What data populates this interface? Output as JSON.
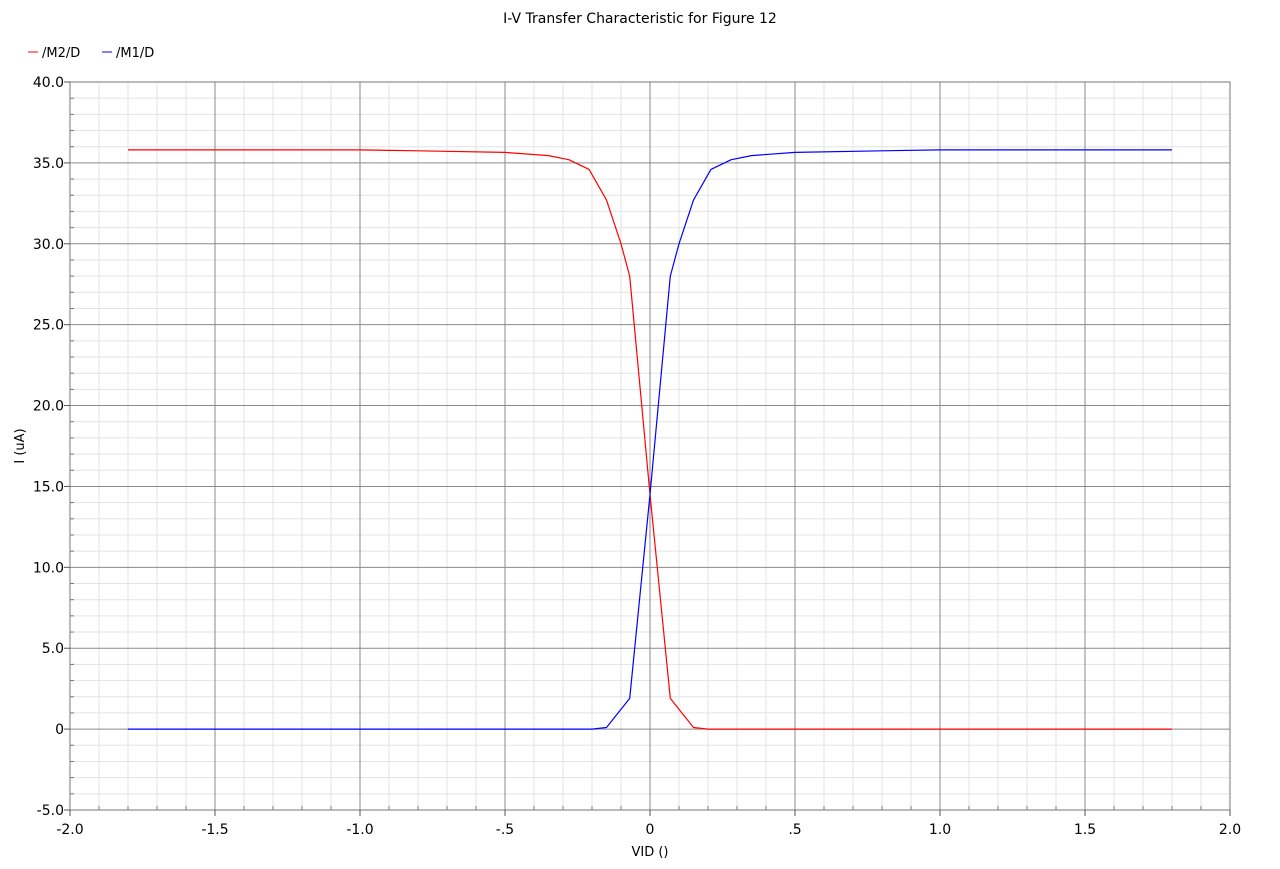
{
  "chart_data": {
    "type": "line",
    "title": "I-V Transfer Characteristic for Figure 12",
    "xlabel": "VID ()",
    "ylabel": "I (uA)",
    "xlim": [
      -2.0,
      2.0
    ],
    "ylim": [
      -5.0,
      40.0
    ],
    "grid": true,
    "legend_position": "top-left",
    "x_ticks": [
      -2.0,
      -1.5,
      -1.0,
      -0.5,
      0,
      0.5,
      1.0,
      1.5,
      2.0
    ],
    "x_tick_labels": [
      "-2.0",
      "-1.5",
      "-1.0",
      "-.5",
      "0",
      ".5",
      "1.0",
      "1.5",
      "2.0"
    ],
    "y_ticks": [
      -5.0,
      0,
      5.0,
      10.0,
      15.0,
      20.0,
      25.0,
      30.0,
      35.0,
      40.0
    ],
    "y_tick_labels": [
      "-5.0",
      "0",
      "5.0",
      "10.0",
      "15.0",
      "20.0",
      "25.0",
      "30.0",
      "35.0",
      "40.0"
    ],
    "series": [
      {
        "name": "/M2/D",
        "color": "#ff0000",
        "x": [
          -1.8,
          -1.0,
          -0.8,
          -0.5,
          -0.35,
          -0.28,
          -0.21,
          -0.15,
          -0.1,
          -0.07,
          0,
          0.07,
          0.15,
          0.2,
          0.4,
          1.0,
          1.8
        ],
        "y": [
          35.8,
          35.8,
          35.75,
          35.65,
          35.45,
          35.2,
          34.6,
          32.7,
          30.0,
          28.0,
          14.5,
          1.9,
          0.1,
          0.0,
          0.0,
          0.0,
          0.0
        ]
      },
      {
        "name": "/M1/D",
        "color": "#0000ff",
        "x": [
          -1.8,
          -1.0,
          -0.4,
          -0.2,
          -0.15,
          -0.07,
          0,
          0.07,
          0.1,
          0.15,
          0.21,
          0.28,
          0.35,
          0.5,
          0.8,
          1.0,
          1.8
        ],
        "y": [
          0.0,
          0.0,
          0.0,
          0.0,
          0.1,
          1.9,
          14.5,
          28.0,
          30.0,
          32.7,
          34.6,
          35.2,
          35.45,
          35.65,
          35.75,
          35.8,
          35.8
        ]
      }
    ]
  }
}
